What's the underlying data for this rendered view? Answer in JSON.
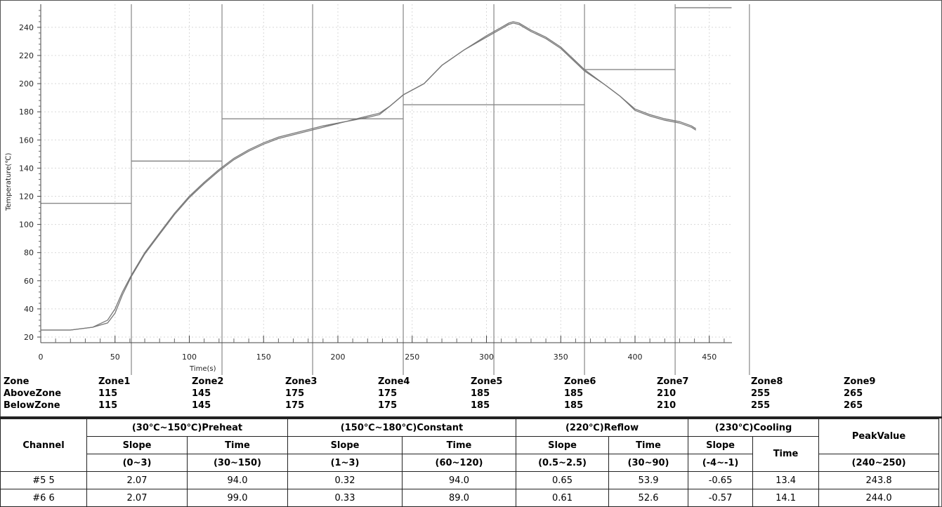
{
  "chart_data": {
    "type": "line",
    "xlabel": "Time(s)",
    "ylabel": "Temperature(℃)",
    "xlim": [
      0,
      465
    ],
    "ylim": [
      17,
      253
    ],
    "x_ticks": [
      0,
      50,
      100,
      150,
      200,
      250,
      300,
      350,
      400,
      450
    ],
    "y_ticks": [
      20,
      40,
      60,
      80,
      100,
      120,
      140,
      160,
      180,
      200,
      220,
      240
    ],
    "zone_boundaries": [
      61,
      122,
      183,
      244,
      305,
      366,
      427,
      477
    ],
    "zone_setpoints": [
      {
        "x0": 0,
        "x1": 61,
        "y": 115
      },
      {
        "x0": 61,
        "x1": 122,
        "y": 145
      },
      {
        "x0": 122,
        "x1": 244,
        "y": 175
      },
      {
        "x0": 244,
        "x1": 366,
        "y": 185
      },
      {
        "x0": 366,
        "x1": 427,
        "y": 210
      },
      {
        "x0": 427,
        "x1": 465,
        "y": 255
      }
    ],
    "series": [
      {
        "x": [
          0,
          20,
          35,
          45,
          50,
          55,
          61,
          70,
          80,
          90,
          100,
          110,
          120,
          130,
          140,
          150,
          160,
          175,
          190,
          205,
          220,
          228,
          235,
          244,
          258,
          270,
          285,
          300,
          310,
          315,
          318,
          322,
          330,
          340,
          350,
          360,
          366,
          380,
          390,
          400,
          410,
          420,
          430,
          438,
          441
        ],
        "y": [
          25,
          25,
          27,
          32,
          40,
          52,
          64,
          80,
          94,
          108,
          120,
          130,
          139,
          147,
          153,
          158,
          162,
          166,
          170,
          173,
          177,
          179,
          184,
          192,
          200,
          213,
          224,
          234,
          240,
          243,
          244,
          243,
          238,
          233,
          226,
          216,
          210,
          199,
          191,
          182,
          178,
          175,
          173,
          170,
          168
        ]
      },
      {
        "x": [
          0,
          20,
          35,
          45,
          50,
          55,
          61,
          70,
          80,
          90,
          100,
          110,
          120,
          130,
          140,
          150,
          160,
          175,
          190,
          205,
          220,
          228,
          235,
          244,
          258,
          270,
          285,
          300,
          310,
          315,
          318,
          322,
          330,
          340,
          350,
          360,
          366,
          380,
          390,
          400,
          410,
          420,
          430,
          438,
          441
        ],
        "y": [
          25,
          25,
          27,
          30,
          37,
          50,
          63,
          79,
          93,
          107,
          119,
          129,
          138,
          146,
          152,
          157,
          161,
          165,
          169,
          173,
          176,
          178,
          184,
          192,
          200,
          213,
          224,
          233,
          239,
          242,
          243,
          242,
          237,
          232,
          225,
          215,
          209,
          199,
          191,
          181,
          177,
          174,
          172,
          169,
          167
        ]
      }
    ]
  },
  "zone_table": {
    "headers": [
      "Zone",
      "Zone1",
      "Zone2",
      "Zone3",
      "Zone4",
      "Zone5",
      "Zone6",
      "Zone7",
      "Zone8",
      "Zone9"
    ],
    "rows": [
      [
        "AboveZone",
        "115",
        "145",
        "175",
        "175",
        "185",
        "185",
        "210",
        "255",
        "265"
      ],
      [
        "BelowZone",
        "115",
        "145",
        "175",
        "175",
        "185",
        "185",
        "210",
        "255",
        "265"
      ]
    ]
  },
  "stats_table": {
    "channel_header": "Channel",
    "peak_header": "PeakValue",
    "peak_range": "(240~250)",
    "groups": [
      {
        "title": "(30℃~150℃)Preheat",
        "cols": [
          {
            "label": "Slope",
            "range": "(0~3)"
          },
          {
            "label": "Time",
            "range": "(30~150)"
          }
        ]
      },
      {
        "title": "(150℃~180℃)Constant",
        "cols": [
          {
            "label": "Slope",
            "range": "(1~3)"
          },
          {
            "label": "Time",
            "range": "(60~120)"
          }
        ]
      },
      {
        "title": "(220℃)Reflow",
        "cols": [
          {
            "label": "Slope",
            "range": "(0.5~2.5)"
          },
          {
            "label": "Time",
            "range": "(30~90)"
          }
        ]
      },
      {
        "title": "(230℃)Cooling",
        "cols": [
          {
            "label": "Slope",
            "range": "(-4~-1)"
          },
          {
            "label": "Time",
            "range": ""
          }
        ]
      }
    ],
    "rows": [
      [
        "#5 5",
        "2.07",
        "94.0",
        "0.32",
        "94.0",
        "0.65",
        "53.9",
        "-0.65",
        "13.4",
        "243.8"
      ],
      [
        "#6 6",
        "2.07",
        "99.0",
        "0.33",
        "89.0",
        "0.61",
        "52.6",
        "-0.57",
        "14.1",
        "244.0"
      ]
    ]
  },
  "colors": {
    "curve": "#777777",
    "zone_line": "#888888",
    "grid": "#d8d8d8"
  }
}
